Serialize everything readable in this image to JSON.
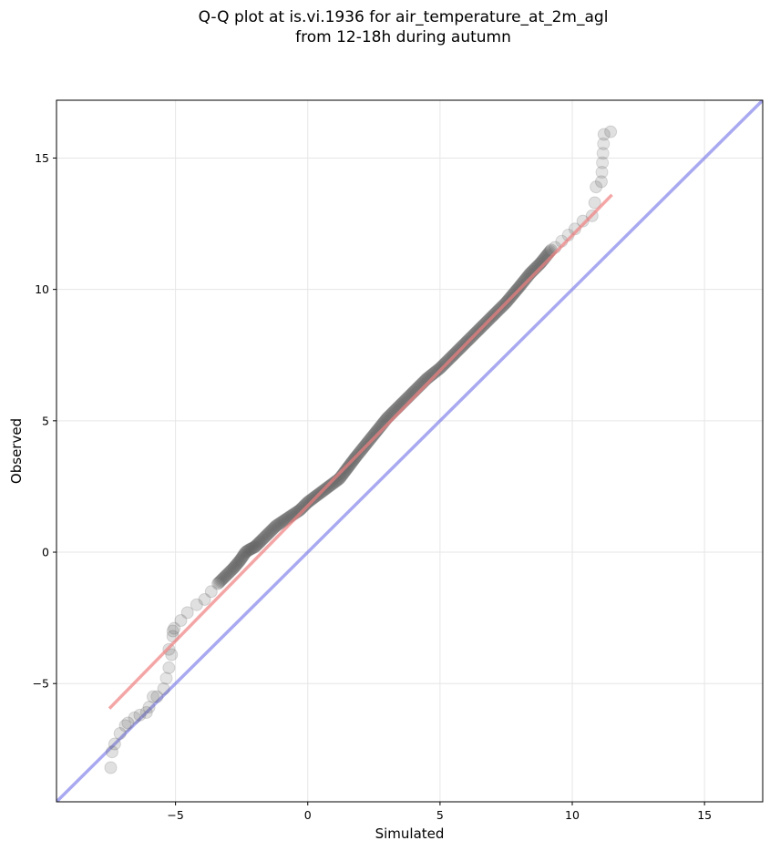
{
  "chart_data": {
    "type": "scatter",
    "title_lines": [
      "Q-Q plot at is.vi.1936 for air_temperature_at_2m_agl",
      "from 12-18h during autumn"
    ],
    "xlabel": "Simulated",
    "ylabel": "Observed",
    "xlim": [
      -9.5,
      17.2
    ],
    "ylim": [
      -9.5,
      17.2
    ],
    "xticks": [
      -5,
      0,
      5,
      10,
      15
    ],
    "yticks": [
      -5,
      0,
      5,
      10,
      15
    ],
    "xtick_labels": [
      "−5",
      "0",
      "5",
      "10",
      "15"
    ],
    "ytick_labels": [
      "−5",
      "0",
      "5",
      "10",
      "15"
    ],
    "grid": true,
    "legend": "none",
    "colors": {
      "points": "#555555",
      "fit_line": "#f08080",
      "identity_line": "#7b7bea",
      "grid": "#e6e6e6"
    },
    "series": [
      {
        "kind": "points",
        "x": [
          -7.45,
          -7.4,
          -7.3,
          -7.1,
          -6.9,
          -6.8,
          -6.55,
          -6.35,
          -6.1,
          -6.0,
          -5.85,
          -5.7,
          -5.45,
          -5.25,
          -5.15,
          -5.25,
          -5.1,
          -5.1,
          -5.05,
          -4.8,
          -4.55,
          -4.2,
          -3.9,
          -3.65,
          -3.4,
          -3.1,
          -2.8,
          -2.55,
          -2.35,
          -2.2,
          -2.0,
          -1.8,
          -1.5,
          -1.2,
          -0.9,
          -0.6,
          -0.3,
          0.0,
          0.4,
          0.8,
          1.2,
          1.5,
          1.8,
          2.2,
          2.6,
          3.0,
          3.5,
          4.0,
          4.5,
          5.0,
          5.5,
          6.0,
          6.5,
          7.0,
          7.5,
          8.0,
          8.4,
          8.8,
          9.2,
          9.35,
          10.1,
          10.4,
          10.75,
          10.85,
          10.9,
          11.1,
          11.2,
          11.45
        ],
        "y": [
          -8.2,
          -7.6,
          -7.3,
          -6.9,
          -6.6,
          -6.5,
          -6.3,
          -6.2,
          -6.1,
          -5.9,
          -5.5,
          -5.5,
          -5.2,
          -4.4,
          -3.9,
          -3.7,
          -3.2,
          -3.0,
          -2.9,
          -2.6,
          -2.3,
          -2.0,
          -1.8,
          -1.5,
          -1.2,
          -0.9,
          -0.6,
          -0.3,
          0.0,
          0.1,
          0.2,
          0.4,
          0.7,
          1.0,
          1.2,
          1.4,
          1.6,
          1.9,
          2.2,
          2.5,
          2.8,
          3.2,
          3.6,
          4.1,
          4.6,
          5.1,
          5.6,
          6.1,
          6.6,
          7.0,
          7.5,
          8.0,
          8.5,
          9.0,
          9.5,
          10.1,
          10.6,
          11.0,
          11.5,
          11.6,
          12.3,
          12.6,
          12.8,
          13.3,
          13.9,
          14.1,
          15.9,
          16.0
        ]
      },
      {
        "kind": "fit_line",
        "x": [
          -7.5,
          11.5
        ],
        "y": [
          -5.95,
          13.6
        ]
      },
      {
        "kind": "identity_line",
        "x": [
          -9.5,
          17.2
        ],
        "y": [
          -9.5,
          17.2
        ]
      }
    ]
  }
}
